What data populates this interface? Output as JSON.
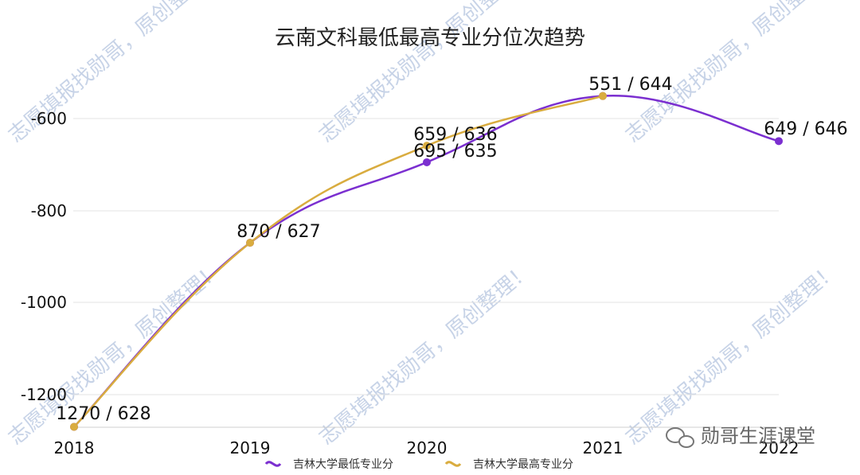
{
  "chart_data": {
    "type": "line",
    "title": "云南文科最低最高专业分位次趋势",
    "categories": [
      "2018",
      "2019",
      "2020",
      "2021",
      "2022"
    ],
    "y_ticks": [
      "-600",
      "-800",
      "-1000",
      "-1200"
    ],
    "ylim": [
      -1270,
      -551
    ],
    "grid": true,
    "legend_position": "bottom",
    "series": [
      {
        "name": "吉林大学最低专业分",
        "color": "#7b2fd0",
        "values": [
          -1270,
          -870,
          -695,
          -551,
          -649
        ]
      },
      {
        "name": "吉林大学最高专业分",
        "color": "#d9ac3f",
        "values": [
          -1270,
          -870,
          -659,
          -551,
          null
        ]
      }
    ],
    "data_labels": [
      "1270 / 628",
      "870 / 627",
      "659 / 636",
      "695 / 635",
      "551 / 644",
      "649 / 646"
    ]
  },
  "watermark": {
    "text_a": "志愿填报找勋哥，原创整理！",
    "text_b": "志愿填报找勋哥",
    "color": "#9bb0d4"
  },
  "brand": {
    "text": "勋哥生涯课堂",
    "icon": "wechat-icon"
  }
}
